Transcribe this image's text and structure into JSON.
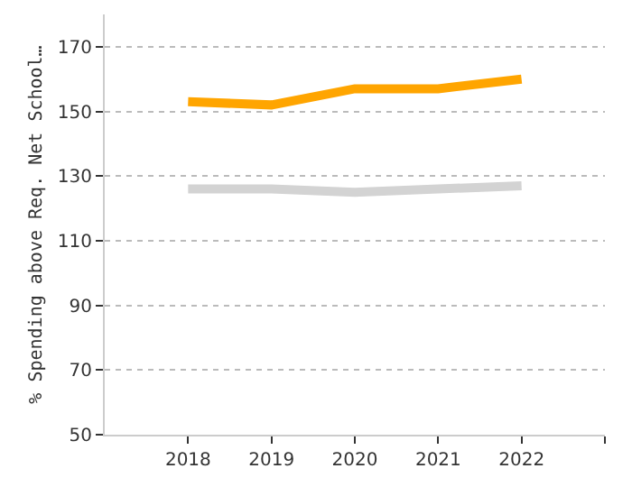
{
  "chart_data": {
    "type": "line",
    "ylabel": "% Spending above Req. Net School…",
    "x": [
      2018,
      2019,
      2020,
      2021,
      2022
    ],
    "series": [
      {
        "color": "#ffa500",
        "values": [
          153,
          152,
          157,
          157,
          160
        ]
      },
      {
        "color": "#d3d3d3",
        "values": [
          126,
          126,
          125,
          126,
          127
        ]
      }
    ],
    "xlim": [
      2017,
      2023
    ],
    "xticks": [
      2018,
      2019,
      2020,
      2021,
      2022,
      {
        "value": 2023,
        "label": null
      }
    ],
    "ylim": [
      50,
      180
    ],
    "yticks": [
      50,
      70,
      90,
      110,
      130,
      150,
      170
    ],
    "grid": "y",
    "marker": "none",
    "line_style": "solid"
  }
}
